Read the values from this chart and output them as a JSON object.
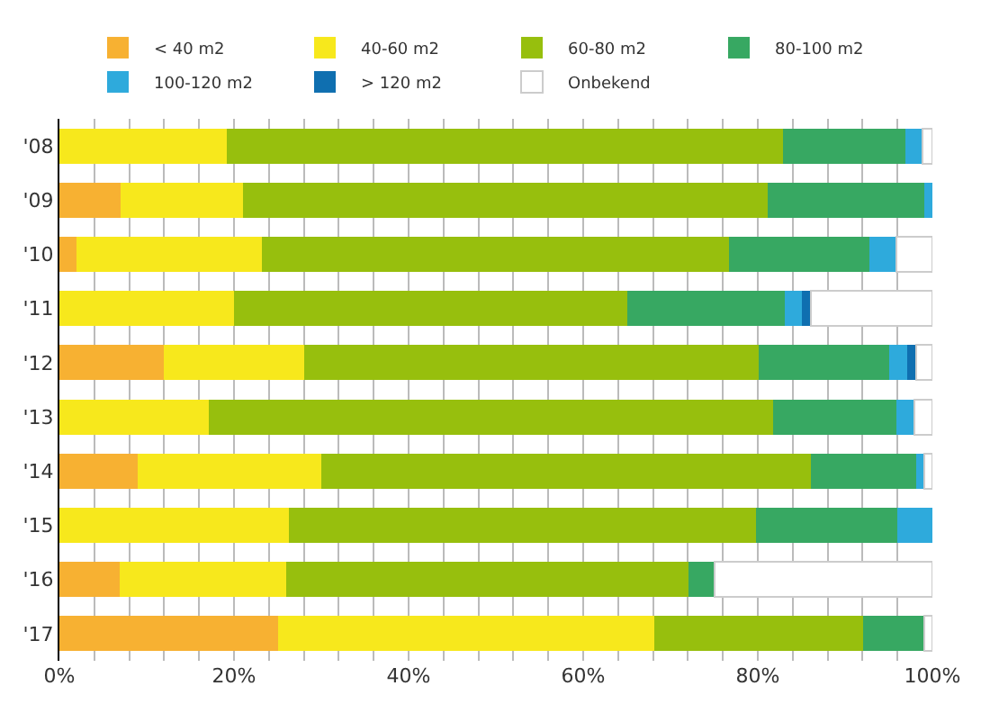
{
  "chart_data": {
    "type": "bar",
    "orientation": "horizontal",
    "stacked": true,
    "categories": [
      "'08",
      "'09",
      "'10",
      "'11",
      "'12",
      "'13",
      "'14",
      "'15",
      "'16",
      "'17"
    ],
    "series": [
      {
        "name": "< 40 m2",
        "color": "#f7b132",
        "values": [
          0,
          7.0,
          2.0,
          0,
          12.0,
          0,
          9.0,
          0,
          6.9,
          25.0
        ]
      },
      {
        "name": "40-60 m2",
        "color": "#f7e81c",
        "values": [
          19.2,
          14.0,
          21.2,
          20.0,
          16.0,
          17.1,
          21.0,
          26.3,
          19.1,
          43.1
        ]
      },
      {
        "name": "60-80 m2",
        "color": "#97bf0d",
        "values": [
          63.7,
          60.1,
          53.5,
          45.1,
          52.1,
          64.7,
          56.1,
          53.5,
          46.1,
          24.0
        ]
      },
      {
        "name": "80-100 m2",
        "color": "#37a862",
        "values": [
          14.0,
          18.0,
          16.1,
          18.0,
          15.0,
          14.1,
          12.0,
          16.2,
          3.0,
          7.0
        ]
      },
      {
        "name": "100-120 m2",
        "color": "#2eaadc",
        "values": [
          2.0,
          0.9,
          3.1,
          2.0,
          2.0,
          2.0,
          1.0,
          4.0,
          0,
          0
        ]
      },
      {
        "name": "> 120 m2",
        "color": "#0f6fb0",
        "values": [
          0,
          0,
          0,
          1.0,
          1.0,
          0,
          0,
          0,
          0,
          0
        ]
      },
      {
        "name": "Onbekend",
        "color": "#ffffff",
        "values": [
          1.1,
          0,
          4.1,
          13.9,
          1.9,
          2.1,
          0.9,
          0,
          24.9,
          0.9
        ]
      }
    ],
    "xlim": [
      0,
      100
    ],
    "xticks": [
      {
        "value": 0,
        "label": "0%"
      },
      {
        "value": 4,
        "label": null
      },
      {
        "value": 8,
        "label": null
      },
      {
        "value": 12,
        "label": null
      },
      {
        "value": 16,
        "label": null
      },
      {
        "value": 20,
        "label": "20%"
      },
      {
        "value": 24,
        "label": null
      },
      {
        "value": 28,
        "label": null
      },
      {
        "value": 32,
        "label": null
      },
      {
        "value": 36,
        "label": null
      },
      {
        "value": 40,
        "label": "40%"
      },
      {
        "value": 44,
        "label": null
      },
      {
        "value": 48,
        "label": null
      },
      {
        "value": 52,
        "label": null
      },
      {
        "value": 56,
        "label": null
      },
      {
        "value": 60,
        "label": "60%"
      },
      {
        "value": 64,
        "label": null
      },
      {
        "value": 68,
        "label": null
      },
      {
        "value": 72,
        "label": null
      },
      {
        "value": 76,
        "label": null
      },
      {
        "value": 80,
        "label": "80%"
      },
      {
        "value": 84,
        "label": null
      },
      {
        "value": 88,
        "label": null
      },
      {
        "value": 92,
        "label": null
      },
      {
        "value": 96,
        "label": null
      },
      {
        "value": 100,
        "label": "100%"
      }
    ],
    "grid": "x",
    "legend": "top"
  }
}
